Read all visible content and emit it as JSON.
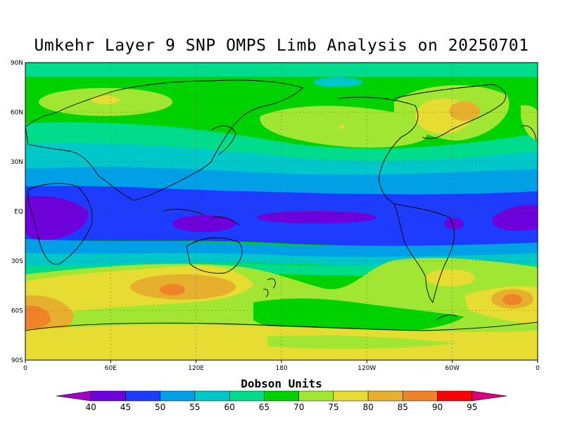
{
  "title": "Umkehr Layer 9 SNP OMPS Limb Analysis on 20250701",
  "map": {
    "lat_labels": [
      "90N",
      "60N",
      "30N",
      "EQ",
      "30S",
      "60S",
      "90S"
    ],
    "lon_labels": [
      "0",
      "60E",
      "120E",
      "180",
      "120W",
      "60W",
      "0"
    ]
  },
  "colorbar": {
    "title": "Dobson Units",
    "levels": [
      "40",
      "45",
      "50",
      "55",
      "60",
      "65",
      "70",
      "75",
      "80",
      "85",
      "90",
      "95"
    ],
    "colors": [
      "#a000c8",
      "#6e00dc",
      "#1e3cff",
      "#00a0e6",
      "#00c8c8",
      "#00dc8c",
      "#00d200",
      "#a0e632",
      "#e6dc32",
      "#e6af2d",
      "#f08228",
      "#fa0000",
      "#dc0080"
    ]
  }
}
